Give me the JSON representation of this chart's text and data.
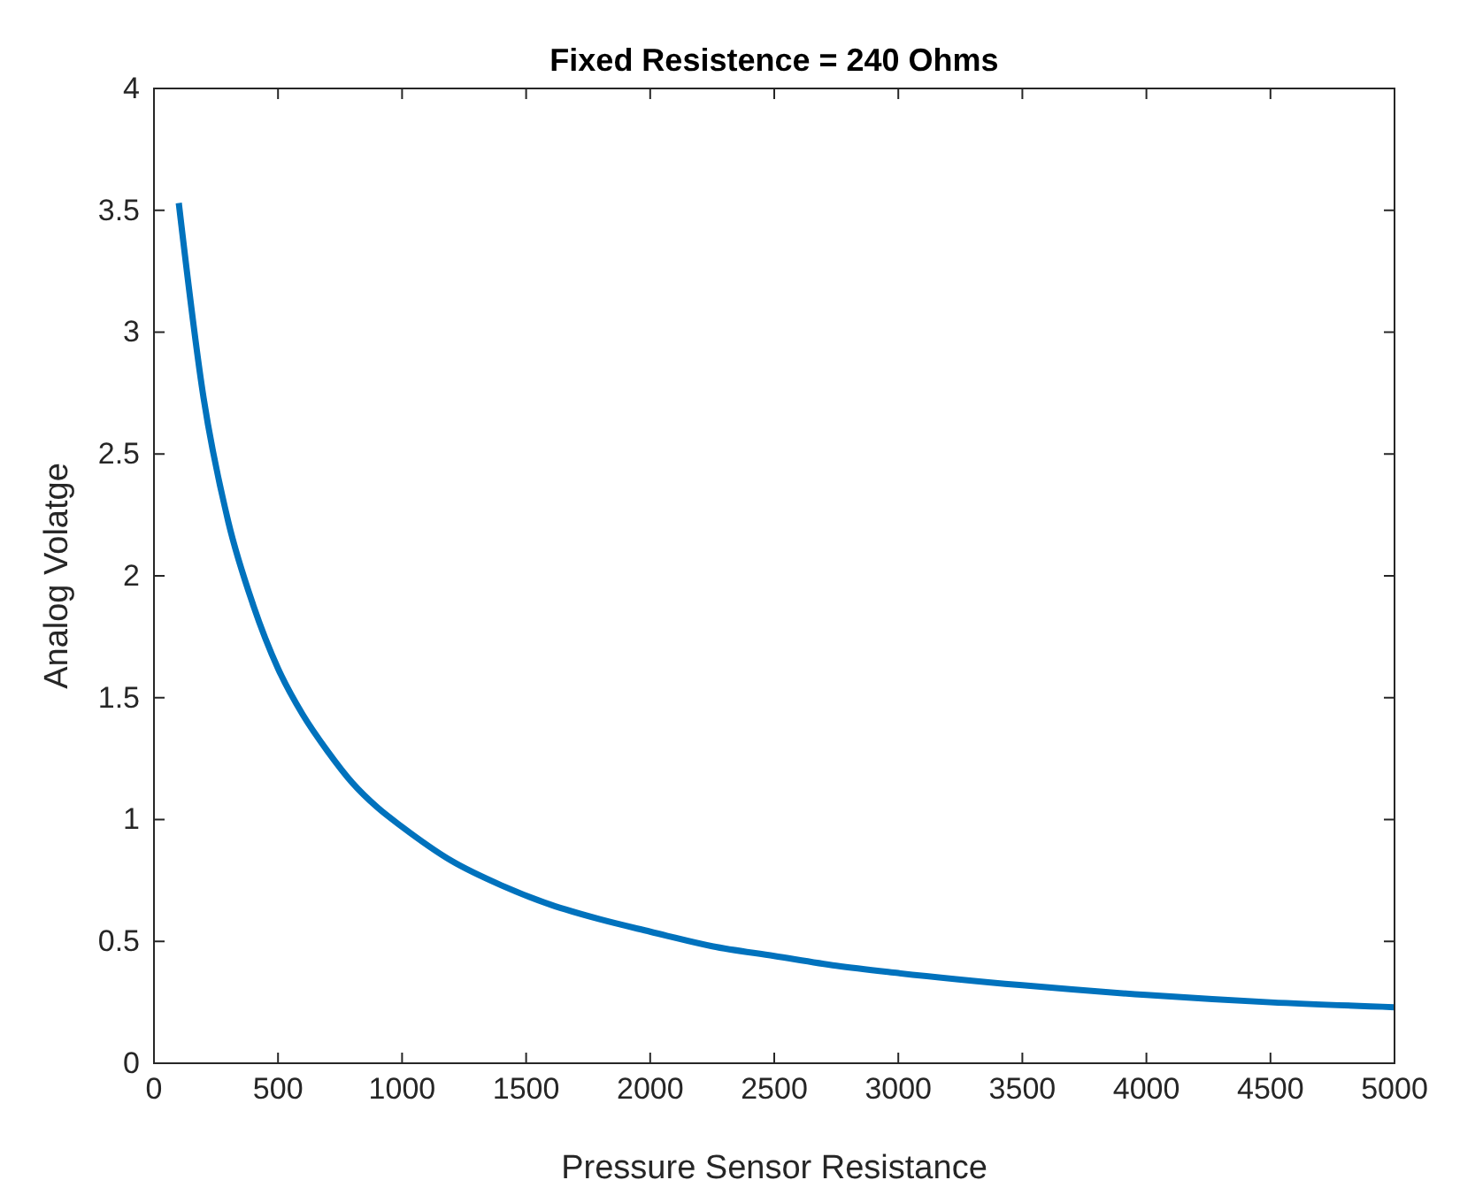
{
  "chart_data": {
    "type": "line",
    "title": "Fixed Resistence = 240 Ohms",
    "xlabel": "Pressure Sensor Resistance",
    "ylabel": "Analog Volatge",
    "x": [
      100,
      200,
      300,
      400,
      500,
      600,
      700,
      800,
      900,
      1000,
      1200,
      1400,
      1600,
      1800,
      2000,
      2250,
      2500,
      2750,
      3000,
      3500,
      4000,
      4500,
      5000
    ],
    "series": [
      {
        "color": "#0072bd",
        "values": [
          3.53,
          2.73,
          2.22,
          1.88,
          1.62,
          1.43,
          1.28,
          1.15,
          1.05,
          0.97,
          0.83,
          0.73,
          0.65,
          0.59,
          0.54,
          0.48,
          0.44,
          0.4,
          0.37,
          0.32,
          0.28,
          0.25,
          0.23
        ]
      }
    ],
    "xlim": [
      0,
      5000
    ],
    "xticks": [
      0,
      500,
      1000,
      1500,
      2000,
      2500,
      3000,
      3500,
      4000,
      4500,
      5000
    ],
    "ylim": [
      0,
      4
    ],
    "yticks": [
      0,
      0.5,
      1,
      1.5,
      2,
      2.5,
      3,
      3.5,
      4
    ],
    "grid": false,
    "legend": false,
    "marker": "none",
    "line_style": "solid"
  }
}
